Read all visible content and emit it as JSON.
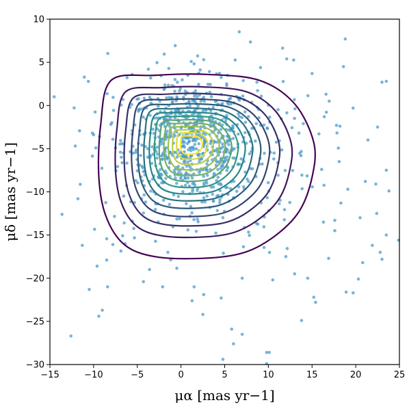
{
  "chart_data": {
    "type": "scatter",
    "xlabel": "μα [mas yr−1]",
    "ylabel": "μδ [mas yr−1]",
    "xlim": [
      -15,
      25
    ],
    "ylim": [
      -30,
      10
    ],
    "xticks": [
      -15,
      -10,
      -5,
      0,
      5,
      10,
      15,
      20,
      25
    ],
    "yticks": [
      -30,
      -25,
      -20,
      -15,
      -10,
      -5,
      0,
      5,
      10
    ],
    "grid": false,
    "legend": "none",
    "point_color": "#4c9bc9",
    "point_count_approx": 950,
    "distribution": {
      "core_center": [
        1.0,
        -4.2
      ],
      "core_sigma": [
        3.8,
        3.4
      ],
      "halo_center": [
        2.5,
        -5.5
      ],
      "halo_sigma": [
        6.5,
        6.0
      ],
      "outlier_points": [
        [
          -12.6,
          -26.7
        ],
        [
          -11.3,
          -16.2
        ],
        [
          -10.5,
          -21.3
        ],
        [
          -9.4,
          -24.4
        ],
        [
          -9.0,
          -23.7
        ],
        [
          -9.6,
          -18.6
        ],
        [
          -11.8,
          -10.8
        ],
        [
          -8.5,
          -17.9
        ],
        [
          -8.4,
          -21.0
        ],
        [
          -7.8,
          -16.1
        ],
        [
          -6.4,
          -16.0
        ],
        [
          -6.5,
          -13.6
        ],
        [
          -4.3,
          -20.4
        ],
        [
          -3.6,
          -19.0
        ],
        [
          -2.1,
          -21.0
        ],
        [
          -1.5,
          -17.0
        ],
        [
          1.5,
          -21.0
        ],
        [
          2.5,
          -24.2
        ],
        [
          2.6,
          -21.9
        ],
        [
          4.6,
          -22.3
        ],
        [
          5.8,
          -25.9
        ],
        [
          6.0,
          -27.6
        ],
        [
          7.0,
          -26.5
        ],
        [
          4.8,
          -29.4
        ],
        [
          9.8,
          -28.6
        ],
        [
          9.8,
          -29.9
        ],
        [
          10.1,
          -28.6
        ],
        [
          7.0,
          -20.0
        ],
        [
          10.5,
          -20.2
        ],
        [
          13.8,
          -24.9
        ],
        [
          15.2,
          -22.2
        ],
        [
          15.4,
          -22.8
        ],
        [
          14.5,
          -20.0
        ],
        [
          13.0,
          -19.5
        ],
        [
          12.0,
          -17.5
        ],
        [
          16.3,
          -13.5
        ],
        [
          16.9,
          -17.7
        ],
        [
          18.9,
          -21.6
        ],
        [
          19.7,
          -21.7
        ],
        [
          20.3,
          -20.1
        ],
        [
          20.8,
          -18.2
        ],
        [
          21.9,
          -16.2
        ],
        [
          22.8,
          -17.0
        ],
        [
          23.0,
          -17.8
        ],
        [
          24.9,
          -15.6
        ],
        [
          23.5,
          -15.0
        ],
        [
          22.4,
          -12.5
        ],
        [
          20.5,
          -13.0
        ],
        [
          18.3,
          -11.3
        ],
        [
          17.6,
          -13.3
        ],
        [
          17.6,
          -14.5
        ],
        [
          19.1,
          -9.7
        ],
        [
          21.1,
          -8.8
        ],
        [
          22.3,
          -9.1
        ],
        [
          23.5,
          -7.5
        ],
        [
          23.8,
          -9.9
        ],
        [
          21.4,
          -4.0
        ],
        [
          22.5,
          -2.5
        ],
        [
          23.0,
          2.7
        ],
        [
          23.5,
          2.8
        ],
        [
          19.7,
          -0.3
        ],
        [
          18.6,
          4.5
        ],
        [
          18.8,
          7.7
        ],
        [
          16.4,
          -1.3
        ],
        [
          18.2,
          -2.4
        ],
        [
          17.8,
          -2.3
        ],
        [
          16.6,
          1.3
        ],
        [
          15.0,
          3.7
        ],
        [
          12.1,
          5.4
        ],
        [
          9.1,
          4.4
        ],
        [
          2.6,
          5.3
        ],
        [
          18.1,
          -6.5
        ],
        [
          16.1,
          -7.4
        ],
        [
          14.0,
          -2.1
        ],
        [
          13.5,
          -3.2
        ]
      ]
    },
    "contours": {
      "type": "kde",
      "levels": 14,
      "colormap": "viridis",
      "color_low": "#440154",
      "color_mid": "#21918c",
      "color_high": "#fde725",
      "peak": [
        1.0,
        -4.3
      ]
    }
  }
}
